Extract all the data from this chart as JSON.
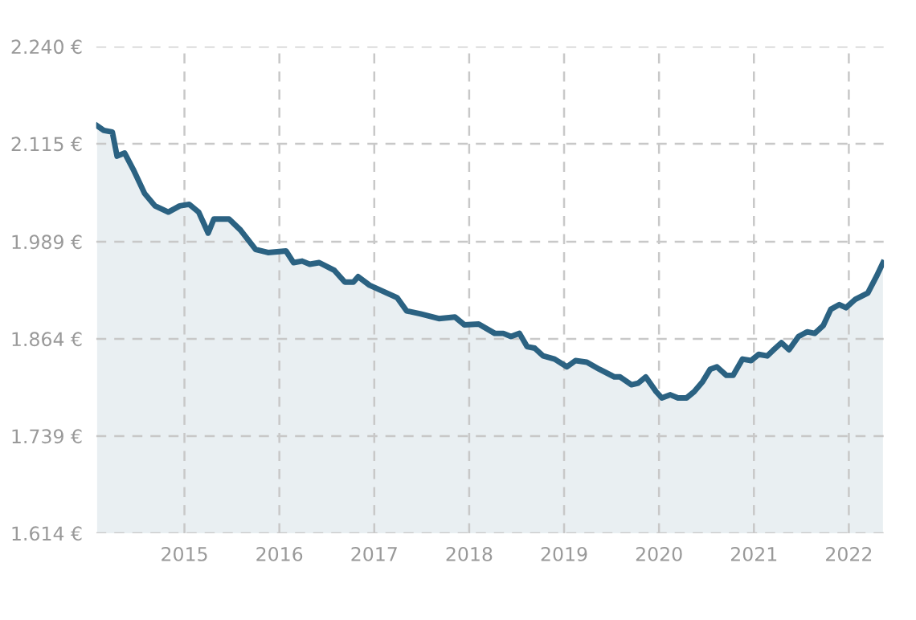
{
  "chart_data": {
    "type": "area",
    "line_style": "solid",
    "marker": "none",
    "grid": true,
    "legend": false,
    "xlim": [
      2014.07,
      2022.37
    ],
    "xticks": [
      2015,
      2016,
      2017,
      2018,
      2019,
      2020,
      2021,
      2022
    ],
    "ylim": [
      1614,
      2240
    ],
    "yticks": [
      {
        "value": 1614,
        "label": "1.614 €"
      },
      {
        "value": 1739,
        "label": "1.739 €"
      },
      {
        "value": 1864,
        "label": "1.864 €"
      },
      {
        "value": 1989,
        "label": "1.989 €"
      },
      {
        "value": 2115,
        "label": "2.115 €"
      },
      {
        "value": 2240,
        "label": "2.240 €"
      }
    ],
    "series": [
      {
        "color": "#2b6282",
        "x": [
          2014.08,
          2014.15,
          2014.24,
          2014.29,
          2014.37,
          2014.46,
          2014.58,
          2014.69,
          2014.83,
          2014.95,
          2015.05,
          2015.15,
          2015.25,
          2015.31,
          2015.47,
          2015.59,
          2015.75,
          2015.88,
          2016.07,
          2016.15,
          2016.24,
          2016.32,
          2016.42,
          2016.58,
          2016.69,
          2016.78,
          2016.83,
          2016.95,
          2017.24,
          2017.34,
          2017.49,
          2017.68,
          2017.85,
          2017.95,
          2018.1,
          2018.27,
          2018.36,
          2018.44,
          2018.53,
          2018.61,
          2018.69,
          2018.78,
          2018.9,
          2019.03,
          2019.12,
          2019.24,
          2019.37,
          2019.53,
          2019.59,
          2019.71,
          2019.78,
          2019.86,
          2019.97,
          2020.03,
          2020.12,
          2020.2,
          2020.29,
          2020.37,
          2020.46,
          2020.54,
          2020.61,
          2020.71,
          2020.78,
          2020.88,
          2020.97,
          2021.05,
          2021.14,
          2021.2,
          2021.29,
          2021.37,
          2021.47,
          2021.56,
          2021.64,
          2021.73,
          2021.81,
          2021.9,
          2021.97,
          2022.07,
          2022.2,
          2022.29,
          2022.36
        ],
        "values": [
          2138,
          2132,
          2130,
          2099,
          2103,
          2082,
          2051,
          2035,
          2027,
          2035,
          2037,
          2027,
          2000,
          2018,
          2018,
          2004,
          1979,
          1975,
          1977,
          1962,
          1964,
          1960,
          1962,
          1952,
          1937,
          1937,
          1944,
          1933,
          1917,
          1900,
          1896,
          1890,
          1892,
          1882,
          1883,
          1871,
          1871,
          1867,
          1871,
          1854,
          1852,
          1842,
          1838,
          1828,
          1836,
          1834,
          1825,
          1815,
          1815,
          1805,
          1807,
          1815,
          1796,
          1788,
          1792,
          1788,
          1788,
          1796,
          1809,
          1825,
          1828,
          1817,
          1817,
          1838,
          1836,
          1844,
          1842,
          1849,
          1859,
          1850,
          1867,
          1873,
          1871,
          1881,
          1902,
          1908,
          1904,
          1915,
          1923,
          1944,
          1962
        ]
      }
    ]
  }
}
